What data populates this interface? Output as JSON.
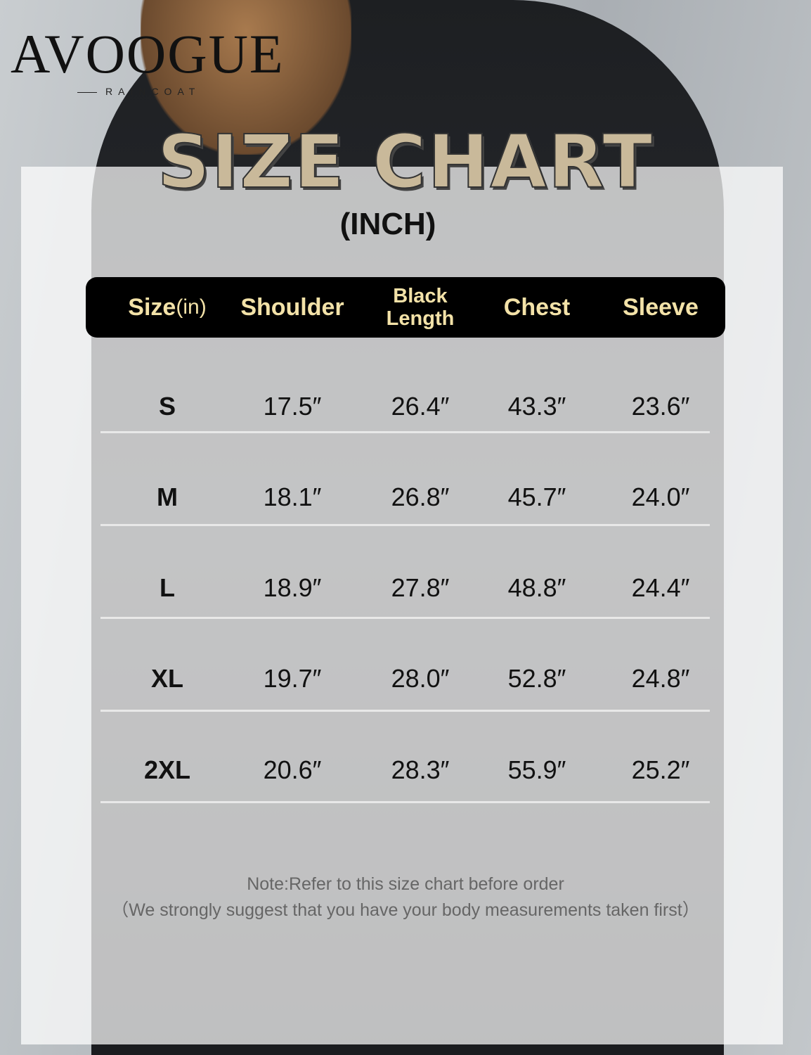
{
  "brand": {
    "logo": "AVOOGUE",
    "sub": "RAINCOAT"
  },
  "title": "SIZE CHART",
  "unit": "(INCH)",
  "table": {
    "headers": [
      {
        "main": "Size",
        "suffix": "(in)"
      },
      {
        "main": "Shoulder"
      },
      {
        "main": "Black Length"
      },
      {
        "main": "Chest"
      },
      {
        "main": "Sleeve"
      }
    ],
    "rows": [
      [
        "S",
        "17.5″",
        "26.4″",
        "43.3″",
        "23.6″"
      ],
      [
        "M",
        "18.1″",
        "26.8″",
        "45.7″",
        "24.0″"
      ],
      [
        "L",
        "18.9″",
        "27.8″",
        "48.8″",
        "24.4″"
      ],
      [
        "XL",
        "19.7″",
        "28.0″",
        "52.8″",
        "24.8″"
      ],
      [
        "2XL",
        "20.6″",
        "28.3″",
        "55.9″",
        "25.2″"
      ]
    ]
  },
  "note": {
    "line1": "Note:Refer to this size chart before order",
    "line2": "（We strongly suggest that you have your body measurements taken first）"
  },
  "colors": {
    "header_bg": "#000000",
    "header_text": "#f3e2a8",
    "title": "#c9b99a"
  }
}
